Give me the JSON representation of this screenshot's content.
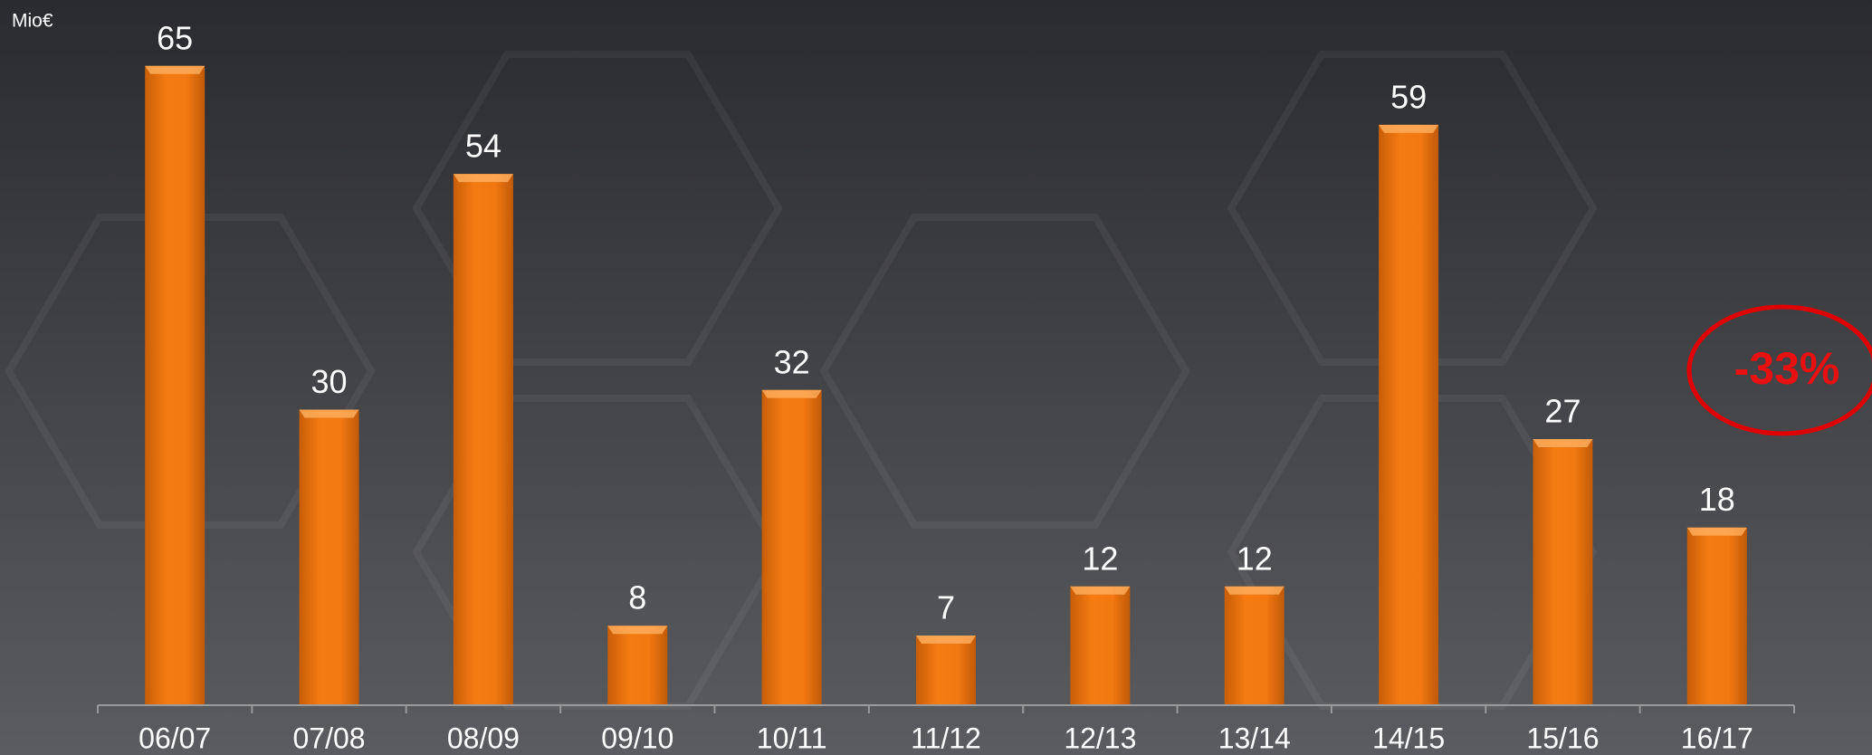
{
  "chart_data": {
    "type": "bar",
    "y_label": "Mio€",
    "categories": [
      "06/07",
      "07/08",
      "08/09",
      "09/10",
      "10/11",
      "11/12",
      "12/13",
      "13/14",
      "14/15",
      "15/16",
      "16/17"
    ],
    "values": [
      65,
      30,
      54,
      8,
      32,
      7,
      12,
      12,
      59,
      27,
      18
    ],
    "color": "#f07812",
    "annotation": "-33%"
  }
}
